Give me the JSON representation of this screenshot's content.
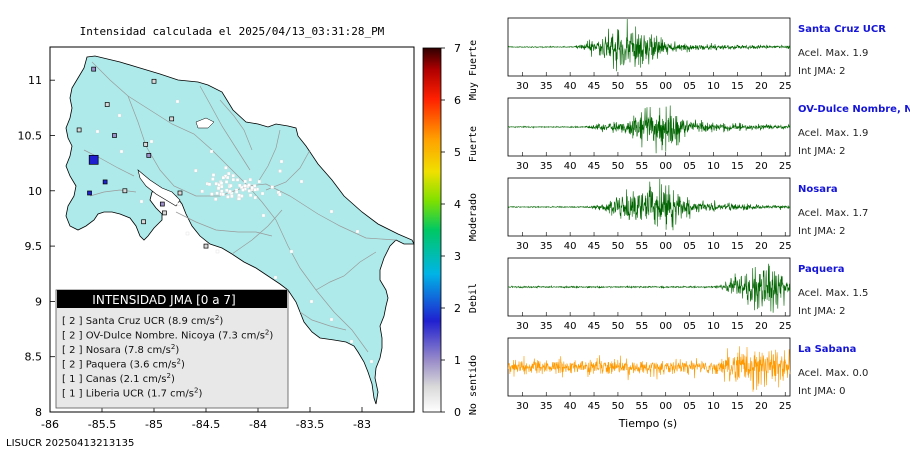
{
  "map": {
    "title": "Intensidad calculada el 2025/04/13_03:31:28_PM",
    "footer_id": "LISUCR 20250413213135",
    "x_ticks": [
      "-86",
      "-85.5",
      "-85",
      "-84.5",
      "-84",
      "-83.5",
      "-83"
    ],
    "y_ticks": [
      "11",
      "10.5",
      "10",
      "9.5",
      "9",
      "8.5",
      "8"
    ],
    "legend": {
      "header": "INTENSIDAD JMA [0 a 7]",
      "rows": [
        {
          "level": "[ 2 ]",
          "name": "Santa Cruz UCR",
          "value": "(8.9 cm/s",
          "exp": "2",
          "close": ")"
        },
        {
          "level": "[ 2 ]",
          "name": "OV-Dulce Nombre. Nicoya",
          "value": "(7.3 cm/s",
          "exp": "2",
          "close": ")"
        },
        {
          "level": "[ 2 ]",
          "name": "Nosara",
          "value": "(7.8 cm/s",
          "exp": "2",
          "close": ")"
        },
        {
          "level": "[ 2 ]",
          "name": "Paquera",
          "value": "(3.6 cm/s",
          "exp": "2",
          "close": ")"
        },
        {
          "level": "[ 1 ]",
          "name": "Canas",
          "value": "(2.1 cm/s",
          "exp": "2",
          "close": ")"
        },
        {
          "level": "[ 1 ]",
          "name": "Liberia UCR",
          "value": "(1.7 cm/s",
          "exp": "2",
          "close": ")"
        }
      ]
    },
    "colors": {
      "land": "#aeeaea",
      "ocean": "#ffffff",
      "roads": "#aaaaaa",
      "coast": "#000000"
    }
  },
  "colorbar": {
    "ticks": [
      "0",
      "1",
      "2",
      "3",
      "4",
      "5",
      "6",
      "7"
    ],
    "labels": [
      "No sentido",
      "Debil",
      "Moderado",
      "Fuerte",
      "Muy Fuerte"
    ]
  },
  "chart_data": [
    {
      "type": "scatter",
      "title": "Intensidad calculada el 2025/04/13_03:31:28_PM",
      "xlim": [
        -86,
        -82.5
      ],
      "ylim": [
        8,
        11.3
      ],
      "points": [
        {
          "lon": -85.58,
          "lat": 10.28,
          "intensity": 2,
          "big": true
        },
        {
          "lon": -85.47,
          "lat": 10.08,
          "intensity": 2
        },
        {
          "lon": -85.62,
          "lat": 9.98,
          "intensity": 2
        },
        {
          "lon": -85.05,
          "lat": 10.32,
          "intensity": 1
        },
        {
          "lon": -85.58,
          "lat": 11.1,
          "intensity": 1
        },
        {
          "lon": -85.0,
          "lat": 10.99,
          "intensity": 0
        },
        {
          "lon": -84.83,
          "lat": 10.65,
          "intensity": 0
        },
        {
          "lon": -85.38,
          "lat": 10.5,
          "intensity": 1
        },
        {
          "lon": -85.08,
          "lat": 10.42,
          "intensity": 0
        },
        {
          "lon": -85.45,
          "lat": 10.78,
          "intensity": 0
        },
        {
          "lon": -85.72,
          "lat": 10.55,
          "intensity": 0
        },
        {
          "lon": -84.92,
          "lat": 9.88,
          "intensity": 1
        },
        {
          "lon": -85.28,
          "lat": 10.0,
          "intensity": 0
        },
        {
          "lon": -84.9,
          "lat": 9.8,
          "intensity": 0
        },
        {
          "lon": -85.1,
          "lat": 9.72,
          "intensity": 0
        },
        {
          "lon": -84.75,
          "lat": 9.98,
          "intensity": 0
        },
        {
          "lon": -84.5,
          "lat": 9.5,
          "intensity": 0
        }
      ]
    },
    {
      "type": "line",
      "x_ticks": [
        "30",
        "35",
        "40",
        "45",
        "50",
        "55",
        "00",
        "05",
        "10",
        "15",
        "20",
        "25"
      ],
      "xlabel": "Tiempo (s)",
      "series": [
        {
          "name": "Santa Cruz UCR",
          "pga": "Acel. Max. 1.9",
          "jma": "Int JMA: 2",
          "color": "#006400",
          "onset": 41,
          "peak": 52,
          "spread": 7,
          "amp": 1.0,
          "noise": 0.02
        },
        {
          "name": "OV-Dulce Nombre, Nicoya",
          "pga": "Acel. Max. 1.9",
          "jma": "Int JMA: 2",
          "color": "#006400",
          "onset": 42,
          "peak": 58,
          "spread": 6,
          "amp": 1.0,
          "noise": 0.02
        },
        {
          "name": "Nosara",
          "pga": "Acel. Max. 1.7",
          "jma": "Int JMA: 2",
          "color": "#006400",
          "onset": 43,
          "peak": 57,
          "spread": 8,
          "amp": 1.0,
          "noise": 0.02
        },
        {
          "name": "Paquera",
          "pga": "Acel. Max. 1.5",
          "jma": "Int JMA: 2",
          "color": "#006400",
          "onset": 68,
          "peak": 80,
          "spread": 6,
          "amp": 1.0,
          "noise": 0.03
        },
        {
          "name": "La Sabana",
          "pga": "Acel. Max. 0.0",
          "jma": "Int JMA: 0",
          "color": "#ff9900",
          "onset": 26,
          "peak": 80,
          "spread": 10,
          "amp": 0.85,
          "noise": 0.3
        }
      ]
    }
  ]
}
